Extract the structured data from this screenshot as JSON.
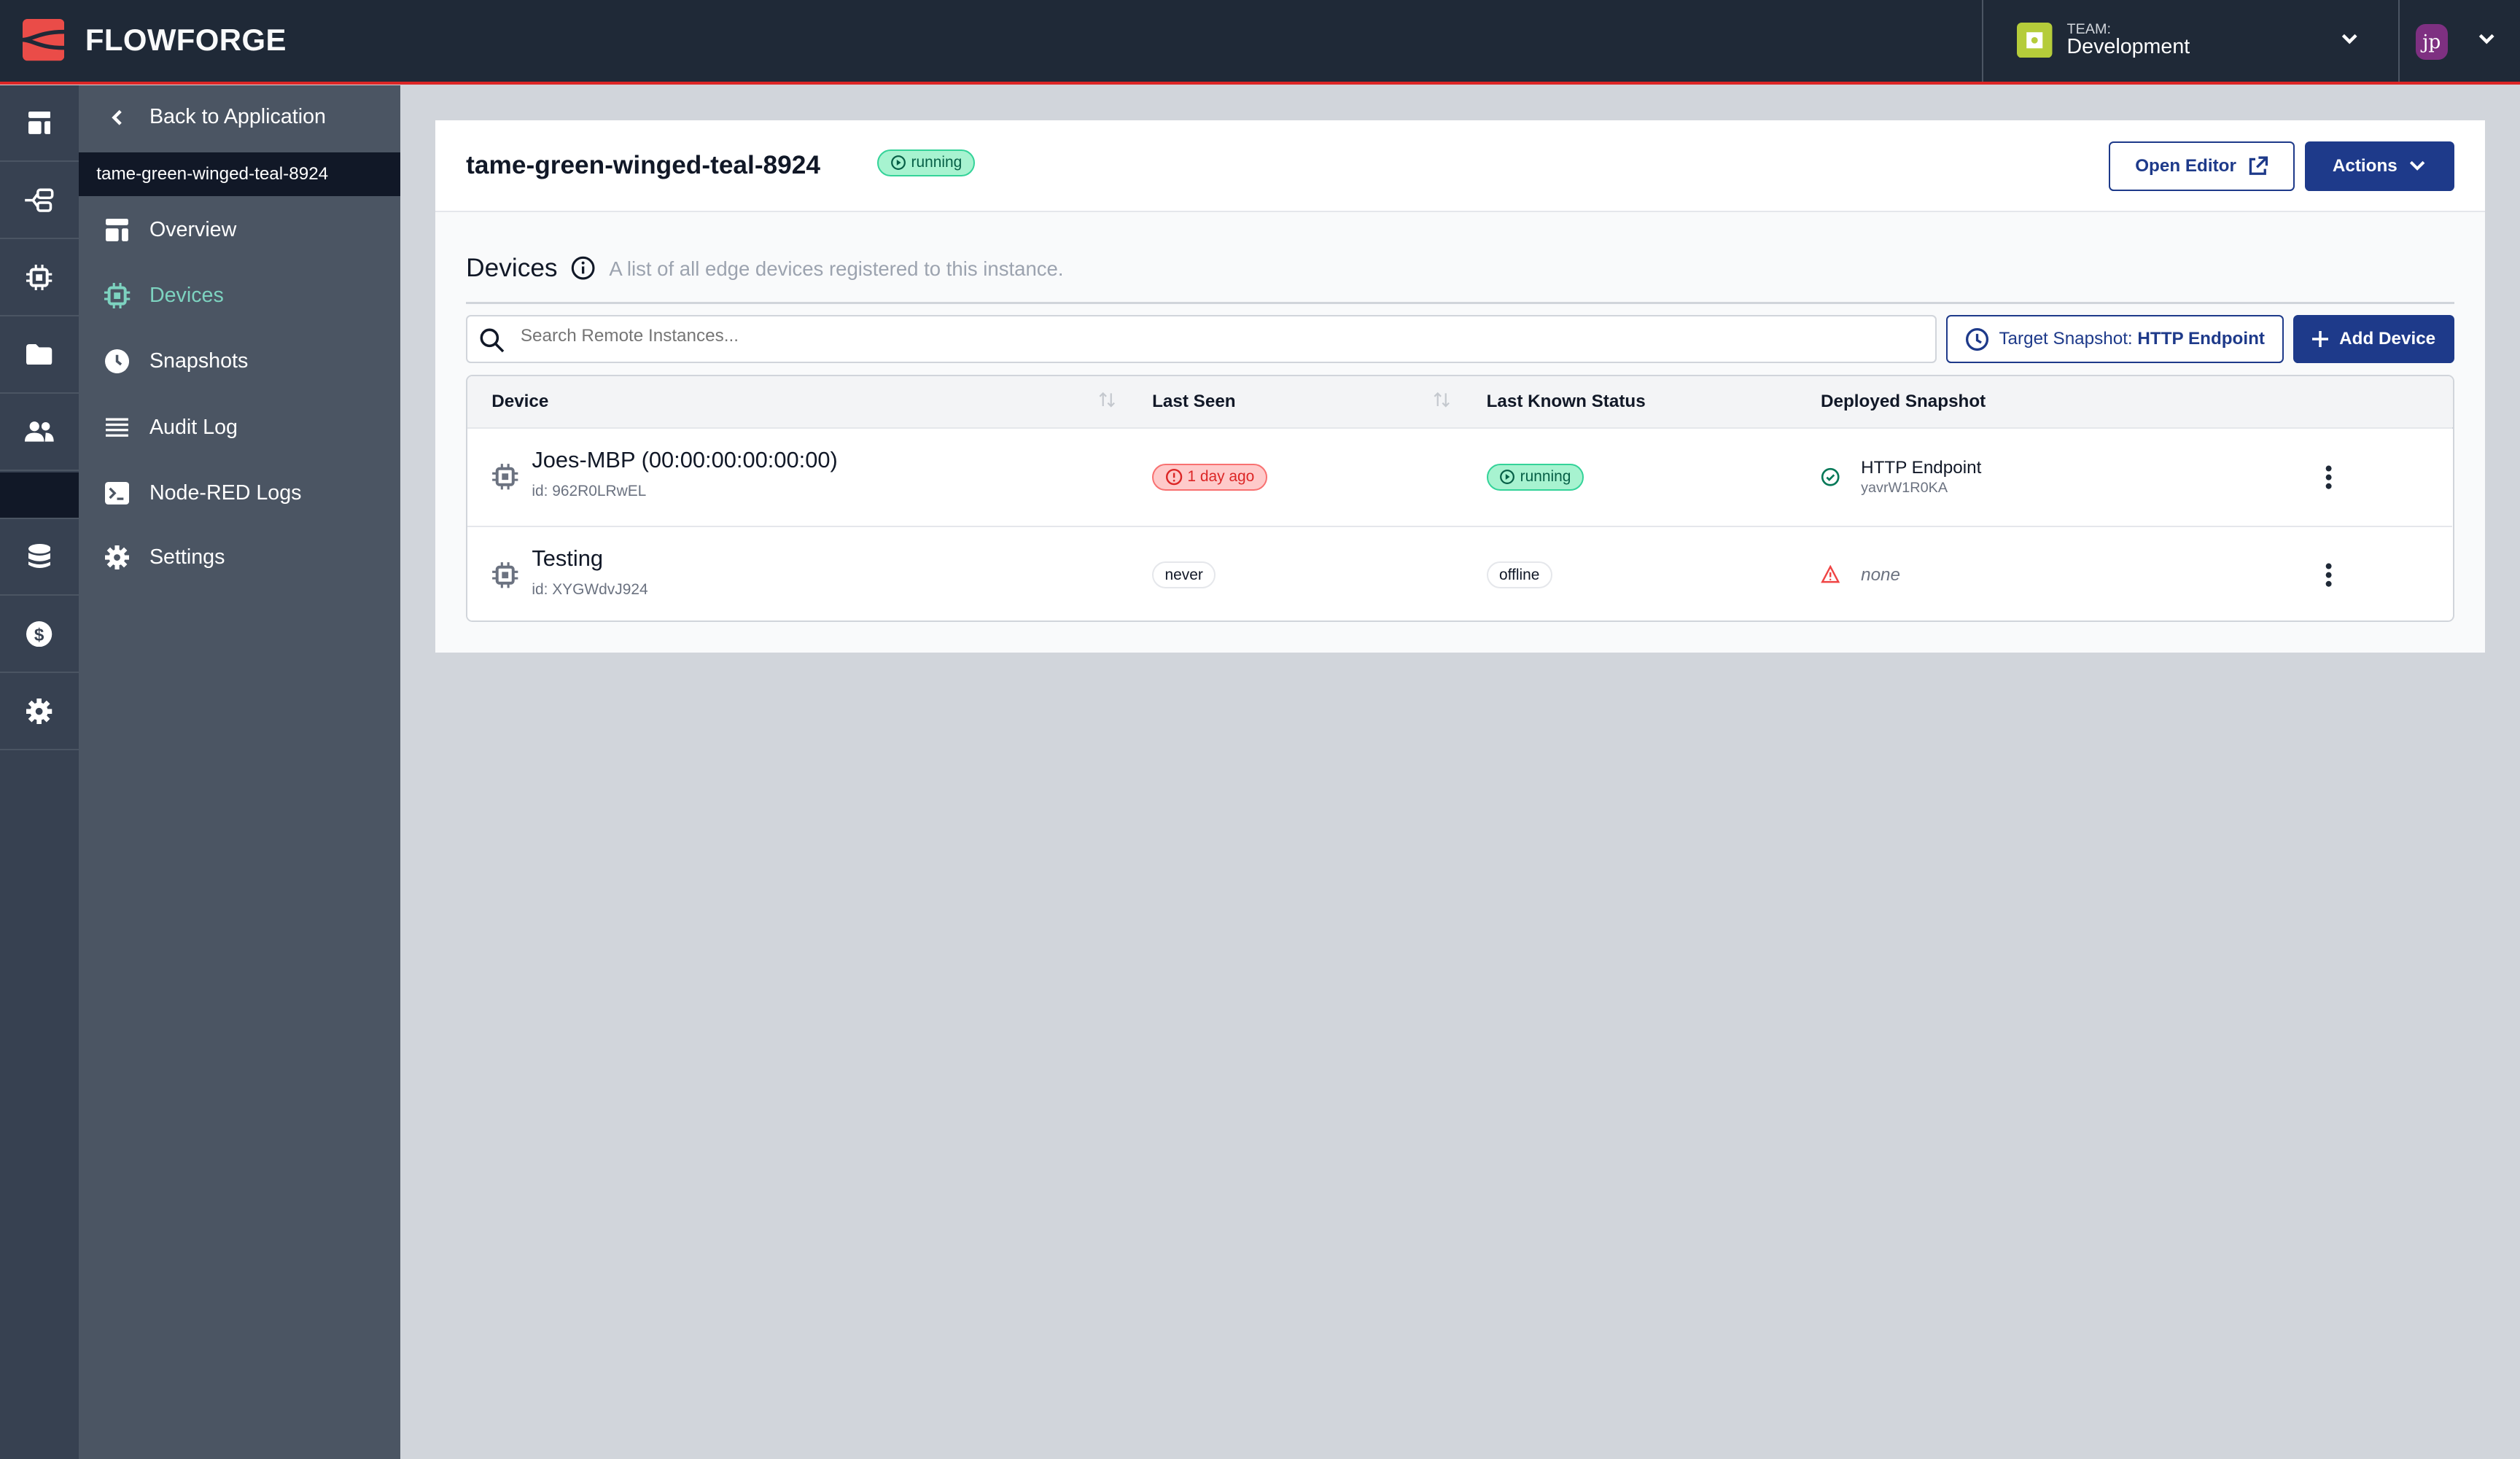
{
  "brand": {
    "name": "FLOWFORGE",
    "color": "#ea4c48"
  },
  "team": {
    "label": "TEAM:",
    "name": "Development"
  },
  "user": {
    "initials": "jp",
    "color": "#7e3081"
  },
  "rail": [
    "dashboard-icon",
    "flow-tree-icon",
    "chip-icon",
    "folder-icon",
    "users-icon",
    "database-icon",
    "dollar-icon",
    "gear-icon"
  ],
  "sidebar": {
    "back_label": "Back to Application",
    "instance_name": "tame-green-winged-teal-8924",
    "items": [
      {
        "label": "Overview",
        "icon": "layout-icon"
      },
      {
        "label": "Devices",
        "icon": "chip-icon",
        "active": true
      },
      {
        "label": "Snapshots",
        "icon": "clock-icon"
      },
      {
        "label": "Audit Log",
        "icon": "list-icon"
      },
      {
        "label": "Node-RED Logs",
        "icon": "terminal-icon"
      },
      {
        "label": "Settings",
        "icon": "cog-icon"
      }
    ]
  },
  "header": {
    "title": "tame-green-winged-teal-8924",
    "status": "running",
    "open_editor": "Open Editor",
    "actions": "Actions"
  },
  "devices": {
    "heading": "Devices",
    "description": "A list of all edge devices registered to this instance.",
    "search_placeholder": "Search Remote Instances...",
    "target_label": "Target Snapshot:",
    "target_value": "HTTP Endpoint",
    "add_device": "Add Device",
    "columns": [
      "Device",
      "Last Seen",
      "Last Known Status",
      "Deployed Snapshot"
    ],
    "rows": [
      {
        "name": "Joes-MBP (00:00:00:00:00:00)",
        "id": "id: 962R0LRwEL",
        "last_seen": "1 day ago",
        "status": "running",
        "snapshot": "HTTP Endpoint",
        "snapshot_id": "yavrW1R0KA"
      },
      {
        "name": "Testing",
        "id": "id: XYGWdvJ924",
        "last_seen": "never",
        "status": "offline",
        "snapshot": "none"
      }
    ]
  }
}
